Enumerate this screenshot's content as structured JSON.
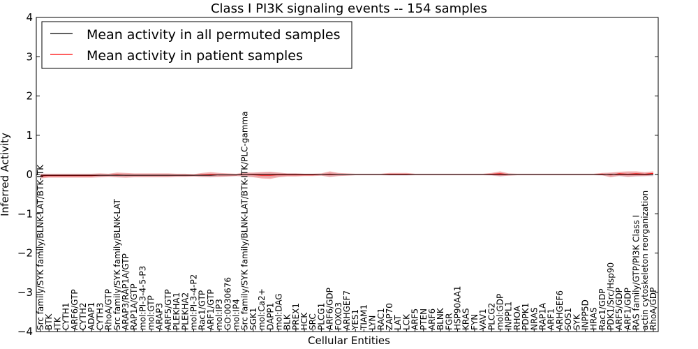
{
  "chart_data": {
    "type": "line",
    "title": "Class I PI3K signaling events -- 154 samples",
    "xlabel": "Cellular Entities",
    "ylabel": "Inferred Activity",
    "ylim": [
      -4,
      4
    ],
    "yticks": [
      "−4",
      "−3",
      "−2",
      "−1",
      "0",
      "1",
      "2",
      "3",
      "4"
    ],
    "legend_position": "top-left",
    "legend": [
      {
        "label": "Mean activity in all permuted samples",
        "color": "#000000"
      },
      {
        "label": "Mean activity in patient samples",
        "color": "#ff0000"
      }
    ],
    "colors": {
      "patient_band": "#f08080",
      "permuted_band": "#b8b8d0"
    },
    "categories": [
      "Src family/SYK family/BLNK-LAT/BTK-ITK",
      "BTK",
      "ITK",
      "CYTH1",
      "ARF6/GTP",
      "CYTH2",
      "ADAP1",
      "CYTH3",
      "RhoA/GTP",
      "Src family/SYK family/BLNK-LAT",
      "ARAP3/RAP1A/GTP",
      "RAP1A/GTP",
      "mol:PI-3-4-5-P3",
      "mol:GTP",
      "ARAP3",
      "ARF5/GTP",
      "PLEKHA1",
      "PLEKHA2",
      "mol:PI-3-4-P2",
      "Rac1/GTP",
      "ARF1/GTP",
      "mol:IP3",
      "GO:0030676",
      "mol:IP4",
      "Src family/SYK family/BLNK-LAT/BTK-ITK/PLC-gamma",
      "SGK1",
      "mol:Ca2+",
      "DAPP1",
      "mol:DAG",
      "BLK",
      "PREX1",
      "HCK",
      "SRC",
      "PLCG1",
      "ARF6/GDP",
      "FOXO3",
      "ARHGEF7",
      "YES1",
      "TIAM1",
      "LYN",
      "RAC1",
      "ZAP70",
      "LAT",
      "LCK",
      "ARF5",
      "PTEN",
      "ARF6",
      "BLNK",
      "FGR",
      "HSP90AA1",
      "KRAS",
      "FYN",
      "VAV1",
      "PLCG2",
      "mol:GDP",
      "INPPL1",
      "RHOA",
      "PDPK1",
      "NRAS",
      "RAP1A",
      "ARF1",
      "ARHGEF6",
      "SOS1",
      "SYK",
      "INPP5D",
      "HRAS",
      "Rac1/GDP",
      "PDK1/Src/Hsp90",
      "ARF5/GDP",
      "ARF1/GDP",
      "RAS family/GTP/PI3K Class I",
      "actin cytoskeleton reorganization",
      "RhoA/GDP"
    ],
    "series": [
      {
        "name": "Mean activity in all permuted samples",
        "values": [
          -0.02,
          -0.02,
          -0.02,
          -0.02,
          -0.02,
          -0.02,
          -0.02,
          -0.02,
          -0.02,
          -0.02,
          -0.02,
          -0.02,
          -0.02,
          -0.02,
          -0.02,
          -0.02,
          -0.02,
          -0.02,
          -0.02,
          -0.02,
          -0.02,
          -0.01,
          -0.01,
          -0.01,
          0,
          0,
          0,
          0,
          0,
          0,
          0,
          0,
          0,
          0,
          0,
          0,
          0,
          0,
          0,
          0,
          0,
          0,
          0,
          0,
          0,
          0,
          0,
          0,
          0,
          0,
          0,
          0,
          0,
          0,
          0,
          0,
          0,
          0,
          0,
          0,
          0,
          0,
          0,
          0,
          0,
          0,
          0,
          0,
          0,
          0,
          0,
          0,
          0
        ]
      },
      {
        "name": "Mean activity in patient samples",
        "values": [
          -0.04,
          -0.03,
          -0.03,
          -0.03,
          -0.03,
          -0.03,
          -0.03,
          -0.02,
          -0.02,
          -0.01,
          -0.02,
          -0.02,
          -0.02,
          -0.02,
          -0.02,
          -0.02,
          -0.02,
          -0.02,
          -0.02,
          -0.01,
          0,
          -0.01,
          -0.01,
          -0.01,
          0,
          -0.01,
          -0.02,
          -0.02,
          -0.01,
          -0.01,
          -0.01,
          -0.01,
          -0.01,
          0,
          0.01,
          0,
          0,
          0,
          0,
          0,
          0,
          0.01,
          0.01,
          0.01,
          0,
          0,
          0,
          0,
          0,
          0,
          0,
          0,
          0,
          0.01,
          0.02,
          0,
          0,
          0,
          0,
          0,
          0,
          0,
          0,
          0,
          0,
          0,
          0.01,
          -0.01,
          0.02,
          0.01,
          0.02,
          0.01,
          0.03
        ]
      }
    ],
    "band_halfwidth": [
      0.06,
      0.05,
      0.05,
      0.05,
      0.05,
      0.05,
      0.05,
      0.05,
      0.04,
      0.06,
      0.06,
      0.05,
      0.05,
      0.05,
      0.05,
      0.05,
      0.04,
      0.04,
      0.03,
      0.05,
      0.06,
      0.05,
      0.04,
      0.03,
      0.05,
      0.06,
      0.08,
      0.09,
      0.06,
      0.04,
      0.04,
      0.03,
      0.03,
      0.03,
      0.07,
      0.04,
      0.03,
      0.02,
      0.02,
      0.02,
      0.02,
      0.03,
      0.03,
      0.03,
      0.02,
      0.02,
      0.02,
      0.02,
      0.02,
      0.02,
      0.02,
      0.02,
      0.02,
      0.03,
      0.06,
      0.03,
      0.02,
      0.02,
      0.02,
      0.02,
      0.02,
      0.02,
      0.02,
      0.02,
      0.02,
      0.02,
      0.03,
      0.06,
      0.05,
      0.07,
      0.06,
      0.05,
      0.05
    ]
  }
}
